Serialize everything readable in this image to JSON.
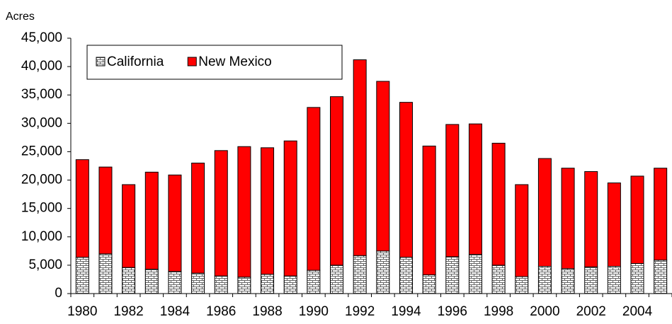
{
  "chart_data": {
    "type": "stacked_bar",
    "y_label": "Acres",
    "categories": [
      "1980",
      null,
      "1982",
      null,
      "1984",
      null,
      "1986",
      null,
      "1988",
      null,
      "1990",
      null,
      "1992",
      null,
      "1994",
      null,
      "1996",
      null,
      "1998",
      null,
      "2000",
      null,
      "2002",
      null,
      "2004",
      null
    ],
    "series": [
      {
        "name": "California",
        "color": "#ffffff",
        "pattern": "brick",
        "values": [
          6400,
          7000,
          4600,
          4300,
          3900,
          3600,
          3100,
          2900,
          3400,
          3100,
          4100,
          5000,
          6700,
          7500,
          6400,
          3300,
          6500,
          6900,
          5000,
          3000,
          4800,
          4400,
          4700,
          4800,
          5300,
          5900
        ]
      },
      {
        "name": "New Mexico",
        "color": "#ff0000",
        "values": [
          17200,
          15300,
          14600,
          17100,
          17000,
          19400,
          22100,
          23000,
          22300,
          23800,
          28700,
          29700,
          34500,
          29900,
          27300,
          22700,
          23300,
          23000,
          21500,
          16200,
          19000,
          17700,
          16800,
          14700,
          15400,
          16200
        ]
      }
    ],
    "ylim": [
      0,
      45000
    ],
    "yticks": [
      0,
      {
        "value": 5000,
        "label": "5,000"
      },
      {
        "value": 10000,
        "label": "10,000"
      },
      {
        "value": 15000,
        "label": "15,000"
      },
      {
        "value": 20000,
        "label": "20,000"
      },
      {
        "value": 25000,
        "label": "25,000"
      },
      {
        "value": 30000,
        "label": "30,000"
      },
      {
        "value": 35000,
        "label": "35,000"
      },
      {
        "value": 40000,
        "label": "40,000"
      },
      {
        "value": 45000,
        "label": "45,000"
      }
    ],
    "grid": false,
    "legend": "top-left"
  }
}
